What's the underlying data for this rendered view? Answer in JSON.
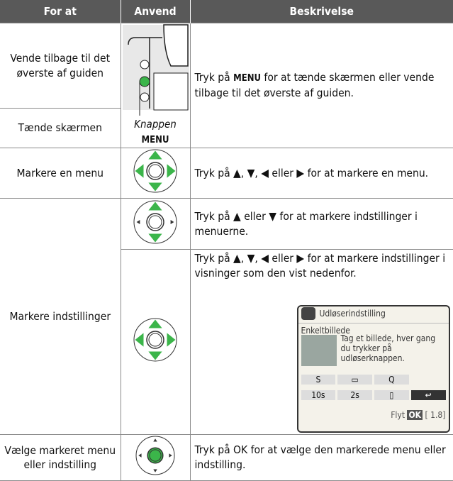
{
  "table": {
    "header": [
      "For at",
      "Anvend",
      "Beskrivelse"
    ],
    "menu_row": {
      "purpose": [
        "Vende tilbage til det øverste af guiden",
        "Tænde skærmen"
      ],
      "caption": [
        "Knappen",
        "MENU"
      ],
      "description": [
        "Tryk på",
        "MENU",
        "for at tænde skærmen eller vende tilbage til det øverste af guiden."
      ]
    },
    "highlight_row": {
      "purpose": "Markere en menu",
      "description": "Tryk på ▲, ▼, ◀ eller ▶ for at markere en menu."
    },
    "settings_row": {
      "purpose": "Markere indstillinger",
      "description_a": "Tryk på ▲ eller ▼ for at markere indstillinger i menuerne.",
      "description_b": "Tryk på ▲, ▼, ◀ eller ▶ for at markere indstillinger i visninger som den vist nedenfor.",
      "screen": {
        "title": "Udløserindstilling",
        "item": "Enkeltbillede",
        "help": "Tag et billede, hver gang du trykker på udløserknappen.",
        "icons": [
          "S",
          "Q",
          "10s",
          "2s"
        ],
        "footer": [
          "Flyt",
          "OK",
          "1.8"
        ]
      }
    },
    "select_row": {
      "purpose": "Vælge markeret menu eller indstilling",
      "description": "Tryk på OK for at vælge den markerede menu eller indstilling."
    }
  }
}
